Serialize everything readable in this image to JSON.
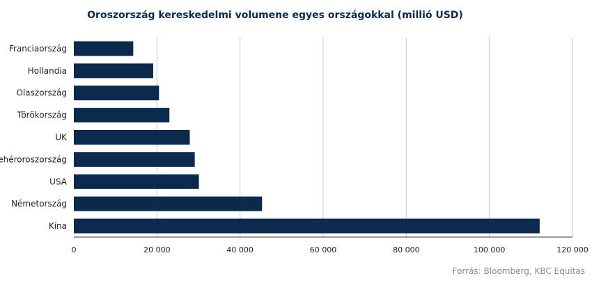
{
  "chart_data": {
    "type": "bar",
    "orientation": "horizontal",
    "title": "Oroszország kereskedelmi volumene egyes országokkal (millió USD)",
    "categories": [
      "Franciaország",
      "Hollandia",
      "Olaszország",
      "Törökország",
      "UK",
      "Fehéroroszország",
      "USA",
      "Németország",
      "Kína"
    ],
    "values": [
      14300,
      19100,
      20500,
      23000,
      27900,
      29100,
      30100,
      45300,
      112100
    ],
    "xlim": [
      0,
      120000
    ],
    "xticks": [
      0,
      20000,
      40000,
      60000,
      80000,
      100000,
      120000
    ],
    "xtick_labels": [
      "0",
      "20 000",
      "40 000",
      "60 000",
      "80 000",
      "100 000",
      "120 000"
    ],
    "grid": true,
    "bar_color": "#0c2a4e",
    "source": "Forrás: Bloomberg, KBC Equitas"
  }
}
